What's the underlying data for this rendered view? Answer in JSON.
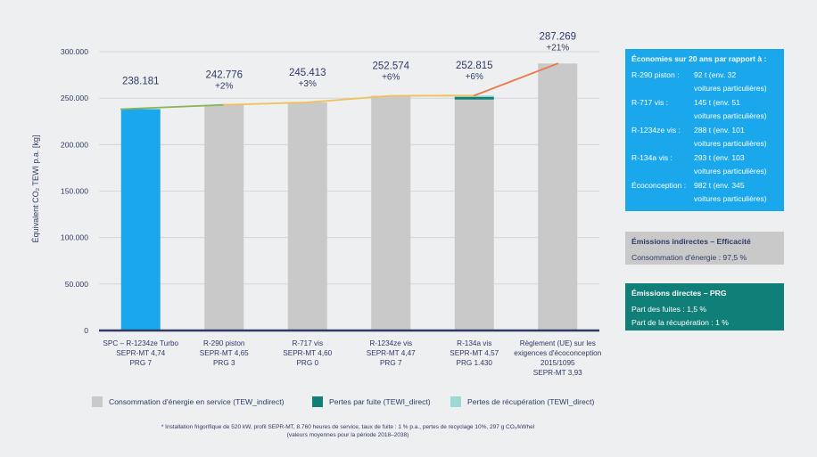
{
  "chart_data": {
    "type": "bar",
    "ylabel": "Équivalent CO₂ TEWI p.a. [kg]",
    "ylim": [
      0,
      300000
    ],
    "yticks": [
      "0",
      "50.000",
      "100.000",
      "150.000",
      "200.000",
      "250.000",
      "300.000"
    ],
    "ytick_values": [
      0,
      50000,
      100000,
      150000,
      200000,
      250000,
      300000
    ],
    "categories": [
      [
        "SPC – R-1234ze Turbo",
        "SEPR-MT 4,74",
        "PRG 7"
      ],
      [
        "R-290 piston",
        "SEPR-MT 4,65",
        "PRG 3"
      ],
      [
        "R-717 vis",
        "SEPR-MT 4,60",
        "PRG 0"
      ],
      [
        "R-1234ze vis",
        "SEPR-MT 4,47",
        "PRG 7"
      ],
      [
        "R-134a vis",
        "SEPR-MT 4,57",
        "PRG 1.430"
      ],
      [
        "Règlement (UE) sur les",
        "exigences d'écoconception",
        "2015/1095",
        "SEPR-MT 3,93"
      ]
    ],
    "totals": [
      238181,
      242776,
      245413,
      252574,
      252815,
      287269
    ],
    "total_labels": [
      "238.181",
      "242.776",
      "245.413",
      "252.574",
      "252.815",
      "287.269"
    ],
    "pct_labels": [
      "",
      "+2%",
      "+3%",
      "+6%",
      "+6%",
      "+21%"
    ],
    "series": [
      {
        "name": "Consommation d'énergie en service (TEW_indirect)",
        "color": "#c9c9c9",
        "values": [
          238181,
          242776,
          245413,
          252574,
          248485,
          287269
        ]
      },
      {
        "name": "Pertes par fuite (TEWI_direct)",
        "color": "#0f7f78",
        "values": [
          0,
          0,
          0,
          0,
          2900,
          0
        ]
      },
      {
        "name": "Pertes de récupération (TEWI_direct)",
        "color": "#9ed8d4",
        "values": [
          0,
          0,
          0,
          0,
          1430,
          0
        ]
      }
    ],
    "highlight_color": "#1aa7ec",
    "trend_colors": [
      "#8ab65a",
      "#f0c15a",
      "#ee7845"
    ],
    "footnote": [
      "* Installation frigorifique de 520 kW, profil SEPR-MT, 8.760 heures de service, taux de fuite : 1 % p.a., pertes de recyclage 10%, 297 g CO₂/kWhel",
      "(valeurs moyennes pour la période 2018–2038)"
    ]
  },
  "panels": {
    "savings": {
      "title": "Économies sur 20 ans par rapport à :",
      "rows": [
        {
          "label": "R-290 piston :",
          "l1": "92 t (env. 32",
          "l2": "voitures particulières)"
        },
        {
          "label": "R-717 vis :",
          "l1": "145 t (env. 51",
          "l2": "voitures particulières)"
        },
        {
          "label": "R-1234ze vis :",
          "l1": "288 t (env. 101",
          "l2": "voitures particulières)"
        },
        {
          "label": "R-134a vis :",
          "l1": "293 t (env. 103",
          "l2": "voitures particulières)"
        },
        {
          "label": "Écoconception :",
          "l1": "982 t (env. 345",
          "l2": "voitures particulières)"
        }
      ]
    },
    "indirect": {
      "title": "Émissions indirectes – Efficacité",
      "line": "Consommation d'énergie : 97,5 %"
    },
    "direct": {
      "title": "Émissions directes – PRG",
      "line1": "Part des fuites : 1,5 %",
      "line2": "Part de la récupération : 1 %"
    }
  }
}
